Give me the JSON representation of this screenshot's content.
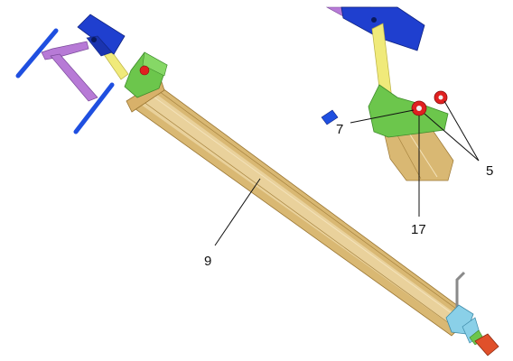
{
  "labels": {
    "rod": "9",
    "pin": "7",
    "rollers": "5",
    "axle": "17"
  },
  "colors": {
    "tube_light": "#e9d19a",
    "tube_mid": "#d6b46c",
    "tube_dark": "#b38a3d",
    "bracket_green": "#66c24a",
    "clamp_blue": "#1f3fcf",
    "handle_purple": "#b77ad6",
    "grip_blue": "#1f4fe0",
    "arm_yellow": "#f0ea7a",
    "roller_red": "#e02020",
    "end_cap_orange": "#e0502a",
    "end_clamp_cyan": "#8ad0e8",
    "rod_grey": "#8a8a8a"
  }
}
